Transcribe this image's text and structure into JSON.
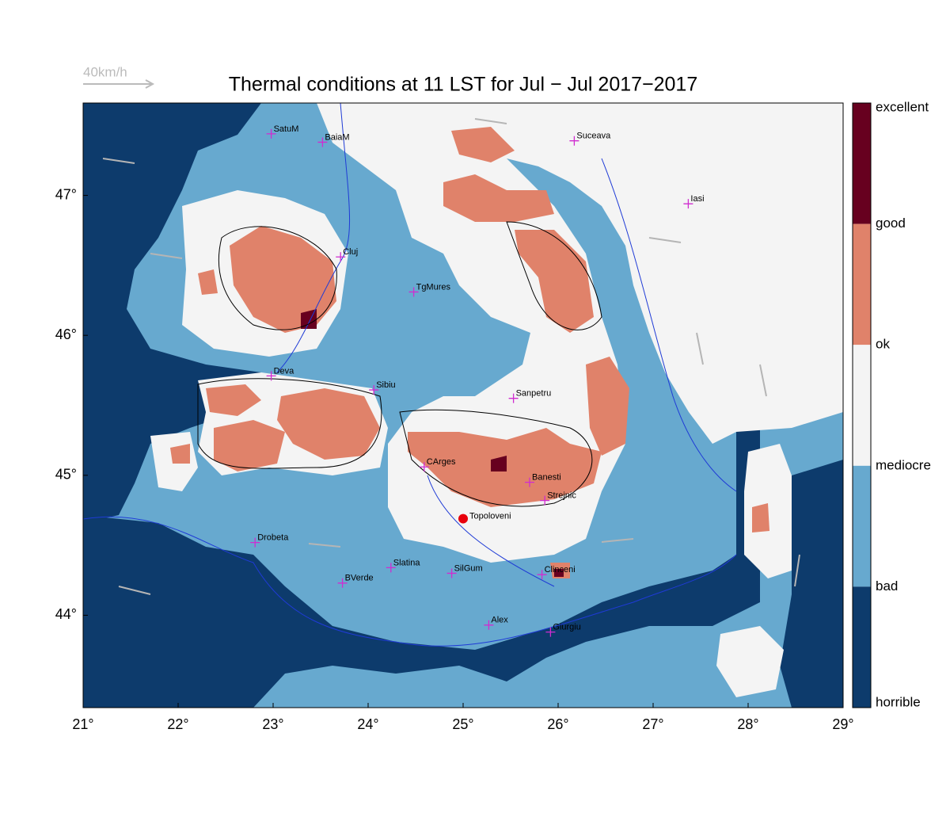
{
  "title": "Thermal conditions at 11 LST for Jul − Jul  2017−2017",
  "wind_scale": "40km/h",
  "colorbar": {
    "labels": [
      "excellent",
      "good",
      "ok",
      "mediocre",
      "bad",
      "horrible"
    ],
    "colors": [
      "#67001f",
      "#e0826a",
      "#f4f4f4",
      "#67a9cf",
      "#0d3b6c"
    ]
  },
  "axes": {
    "xlim": [
      21,
      29
    ],
    "ylim": [
      43.34,
      47.66
    ],
    "xticks": [
      {
        "value": 21,
        "label": "21°"
      },
      {
        "value": 22,
        "label": "22°"
      },
      {
        "value": 23,
        "label": "23°"
      },
      {
        "value": 24,
        "label": "24°"
      },
      {
        "value": 25,
        "label": "25°"
      },
      {
        "value": 26,
        "label": "26°"
      },
      {
        "value": 27,
        "label": "27°"
      },
      {
        "value": 28,
        "label": "28°"
      },
      {
        "value": 29,
        "label": "29°"
      }
    ],
    "yticks": [
      {
        "value": 44,
        "label": "44°"
      },
      {
        "value": 45,
        "label": "45°"
      },
      {
        "value": 46,
        "label": "46°"
      },
      {
        "value": 47,
        "label": "47°"
      }
    ]
  },
  "cities": [
    {
      "name": "SatuM",
      "lon": 22.98,
      "lat": 47.44
    },
    {
      "name": "BaiaM",
      "lon": 23.52,
      "lat": 47.38
    },
    {
      "name": "Suceava",
      "lon": 26.17,
      "lat": 47.39
    },
    {
      "name": "Iasi",
      "lon": 27.37,
      "lat": 46.94
    },
    {
      "name": "Cluj",
      "lon": 23.71,
      "lat": 46.56
    },
    {
      "name": "TgMures",
      "lon": 24.48,
      "lat": 46.31
    },
    {
      "name": "Deva",
      "lon": 22.98,
      "lat": 45.71
    },
    {
      "name": "Sibiu",
      "lon": 24.06,
      "lat": 45.61
    },
    {
      "name": "Sanpetru",
      "lon": 25.53,
      "lat": 45.55
    },
    {
      "name": "CArges",
      "lon": 24.59,
      "lat": 45.06
    },
    {
      "name": "Banesti",
      "lon": 25.7,
      "lat": 44.95
    },
    {
      "name": "Strejnic",
      "lon": 25.86,
      "lat": 44.82
    },
    {
      "name": "Drobeta",
      "lon": 22.81,
      "lat": 44.52
    },
    {
      "name": "Slatina",
      "lon": 24.24,
      "lat": 44.34
    },
    {
      "name": "SilGum",
      "lon": 24.88,
      "lat": 44.3
    },
    {
      "name": "BVerde",
      "lon": 23.73,
      "lat": 44.23
    },
    {
      "name": "Clinceni",
      "lon": 25.83,
      "lat": 44.29
    },
    {
      "name": "Alex",
      "lon": 25.27,
      "lat": 43.93
    },
    {
      "name": "Giurgiu",
      "lon": 25.92,
      "lat": 43.88
    }
  ],
  "site": {
    "name": "Topoloveni",
    "lon": 25.0,
    "lat": 44.69
  }
}
